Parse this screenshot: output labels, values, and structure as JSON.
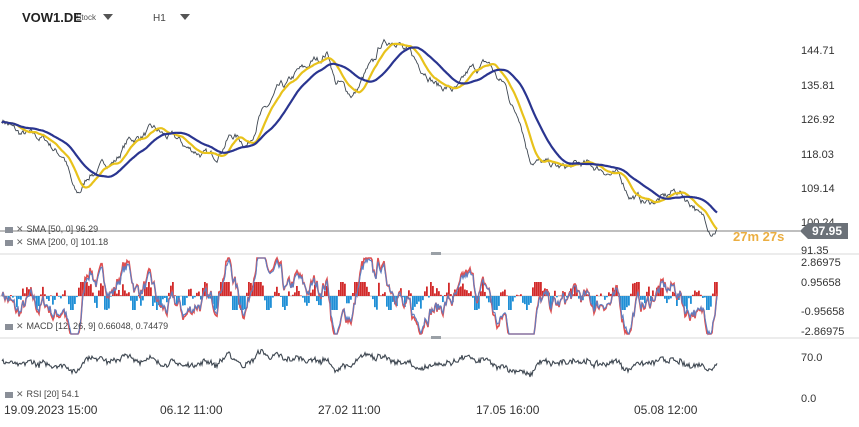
{
  "header": {
    "symbol": "VOW1.DE",
    "instrument_type": "Stock",
    "timeframe": "H1"
  },
  "price_panel": {
    "y_labels": [
      "144.71",
      "135.81",
      "126.92",
      "118.03",
      "109.14",
      "100.24",
      "91.35"
    ],
    "last_price": "97.95",
    "countdown": "27m 27s",
    "indicators": [
      {
        "name": "SMA",
        "params": "[50, 0]",
        "value": "96.29",
        "color": "#e8c21b"
      },
      {
        "name": "SMA",
        "params": "[200, 0]",
        "value": "101.18",
        "color": "#2a3590"
      }
    ]
  },
  "macd_panel": {
    "y_labels": [
      "2.86975",
      "0.95658",
      "-0.95658",
      "-2.86975"
    ],
    "label": "MACD [12, 26, 9]",
    "values": "0.66048,  0.74479"
  },
  "rsi_panel": {
    "y_labels": [
      "70.0",
      "0.0"
    ],
    "label": "RSI [20]",
    "value": "54.1"
  },
  "x_axis": [
    "19.09.2023  15:00",
    "06.12  11:00",
    "27.02  11:00",
    "17.05  16:00",
    "05.08  12:00"
  ],
  "colors": {
    "price": "#3d4650",
    "sma50": "#e8c21b",
    "sma200": "#2a3590",
    "macd_pos": "#d22a2a",
    "macd_neg": "#1f8fd6",
    "price_tag": "#6b7178",
    "countdown": "#e8a020"
  },
  "chart_data": {
    "type": "line",
    "title": "",
    "x": [
      "19.09.2023 15:00",
      "06.12 11:00",
      "27.02 11:00",
      "17.05 16:00",
      "05.08 12:00"
    ],
    "series": [
      {
        "name": "VOW1.DE",
        "values": [
          126.0,
          121.5,
          136.0,
          138.5,
          106.0
        ]
      },
      {
        "name": "SMA [50, 0]",
        "values": [
          126.5,
          120.0,
          139.0,
          138.0,
          104.0
        ]
      },
      {
        "name": "SMA [200, 0]",
        "values": [
          128.0,
          117.5,
          135.5,
          137.0,
          103.5
        ]
      }
    ],
    "ylim": [
      91.35,
      148.0
    ],
    "last_value": 97.95
  }
}
